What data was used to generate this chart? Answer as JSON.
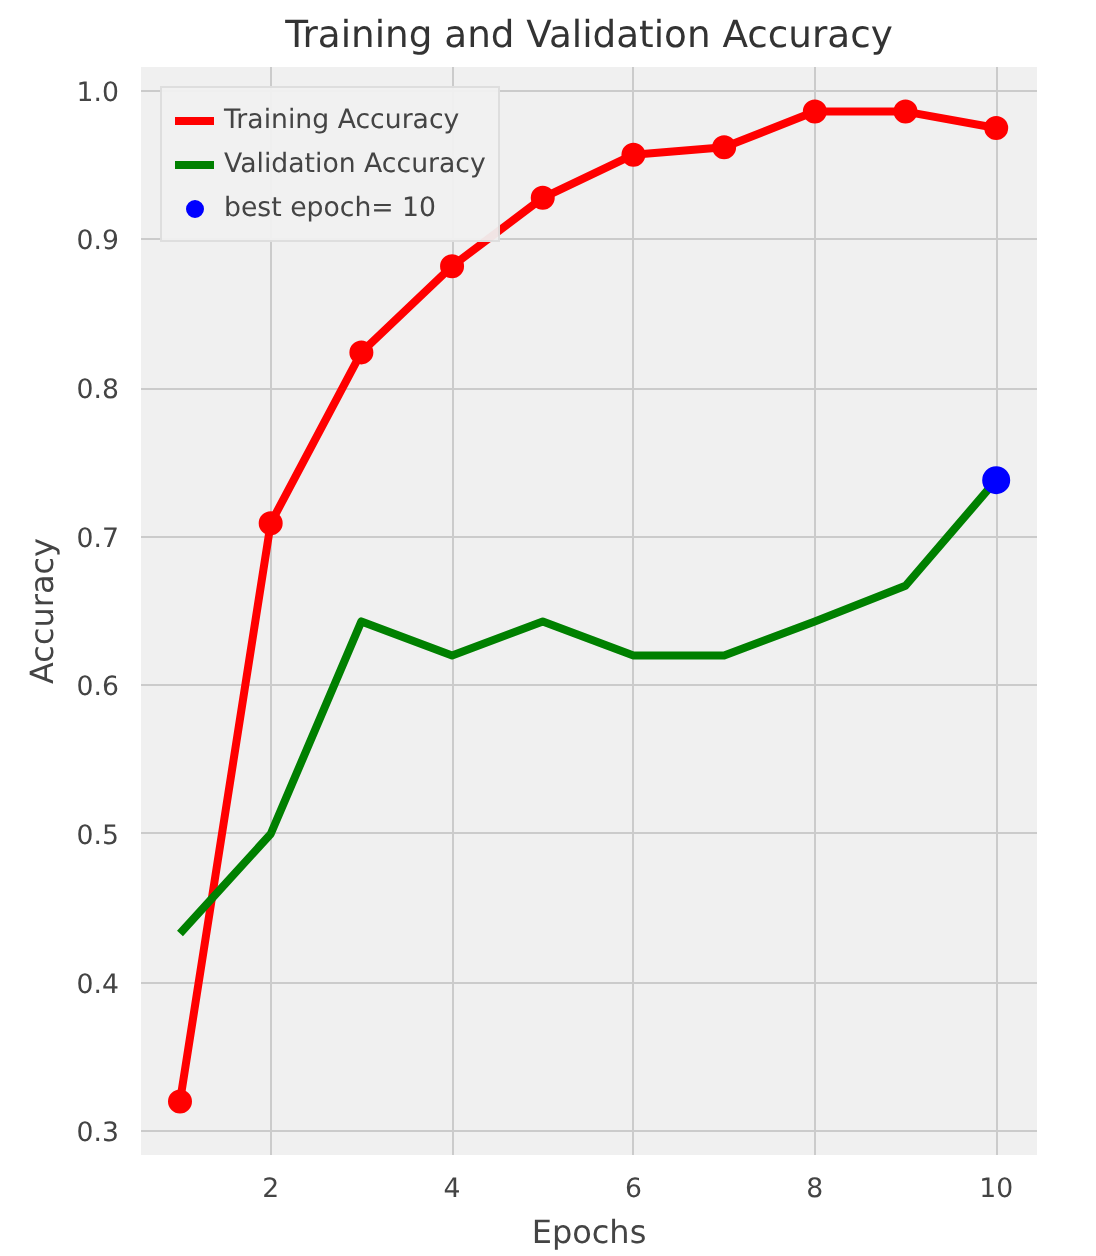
{
  "chart_data": {
    "type": "line",
    "title": "Training and Validation Accuracy",
    "xlabel": "Epochs",
    "ylabel": "Accuracy",
    "x": [
      1,
      2,
      3,
      4,
      5,
      6,
      7,
      8,
      9,
      10
    ],
    "series": [
      {
        "name": "Training Accuracy",
        "color": "#ff0000",
        "marker": "circle",
        "values": [
          0.32,
          0.709,
          0.824,
          0.882,
          0.928,
          0.957,
          0.962,
          0.986,
          0.986,
          0.975
        ]
      },
      {
        "name": "Validation Accuracy",
        "color": "#008000",
        "marker": "none",
        "values": [
          0.433,
          0.5,
          0.643,
          0.62,
          0.643,
          0.62,
          0.62,
          0.643,
          0.667,
          0.738
        ]
      },
      {
        "name": "best epoch= 10",
        "type": "scatter",
        "color": "#0000ff",
        "marker": "circle",
        "x": [
          10
        ],
        "values": [
          0.738
        ]
      }
    ],
    "xlim": [
      0.57,
      10.45
    ],
    "ylim": [
      0.284,
      1.016
    ],
    "xticks": [
      2,
      4,
      6,
      8,
      10
    ],
    "yticks": [
      0.3,
      0.4,
      0.5,
      0.6,
      0.7,
      0.8,
      0.9,
      {
        "value": 1,
        "label": "1.0"
      }
    ],
    "grid": true,
    "legend": "top left",
    "line_style": "solid"
  }
}
